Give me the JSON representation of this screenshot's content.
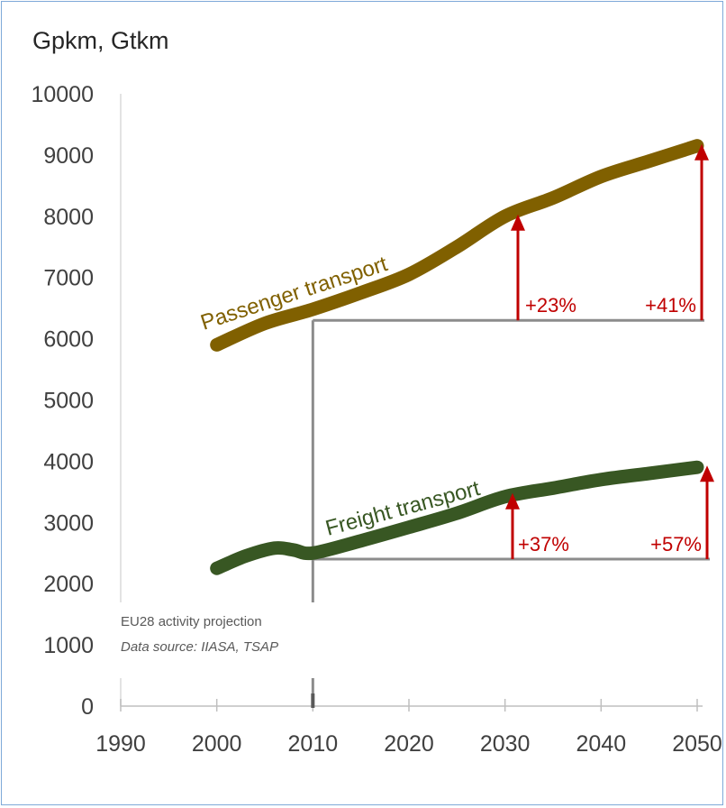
{
  "chart_data": {
    "type": "line",
    "title": "",
    "ylabel": "Gpkm, Gtkm",
    "xlabel": "",
    "xlim": [
      1990,
      2050
    ],
    "ylim": [
      0,
      10000
    ],
    "x_ticks": [
      1990,
      2000,
      2010,
      2020,
      2030,
      2040,
      2050
    ],
    "y_ticks": [
      0,
      1000,
      2000,
      3000,
      4000,
      5000,
      6000,
      7000,
      8000,
      9000,
      10000
    ],
    "grid": false,
    "series": [
      {
        "name": "Passenger transport",
        "color": "#806000",
        "x": [
          2000,
          2005,
          2010,
          2015,
          2020,
          2025,
          2030,
          2035,
          2040,
          2045,
          2050
        ],
        "y": [
          5900,
          6250,
          6480,
          6750,
          7050,
          7500,
          8000,
          8300,
          8650,
          8900,
          9150
        ]
      },
      {
        "name": "Freight transport",
        "color": "#385723",
        "x": [
          2000,
          2003,
          2006,
          2008,
          2010,
          2015,
          2020,
          2025,
          2030,
          2035,
          2040,
          2045,
          2050
        ],
        "y": [
          2250,
          2450,
          2580,
          2550,
          2500,
          2700,
          2920,
          3150,
          3420,
          3560,
          3700,
          3800,
          3900
        ]
      }
    ],
    "annotations": [
      {
        "label": "+23%",
        "x": 2031,
        "from": 6300,
        "to": 8000
      },
      {
        "label": "+41%",
        "x": 2050,
        "from": 6300,
        "to": 9150
      },
      {
        "label": "+37%",
        "x": 2031,
        "from": 2400,
        "to": 3450
      },
      {
        "label": "+57%",
        "x": 2051,
        "from": 2400,
        "to": 3900
      }
    ],
    "baseline_year": 2010,
    "note_lines": [
      "EU28 activity projection",
      "Data source: IIASA, TSAP"
    ],
    "annotation_color": "#c00000",
    "reference_line_color": "#8c8c8c"
  }
}
